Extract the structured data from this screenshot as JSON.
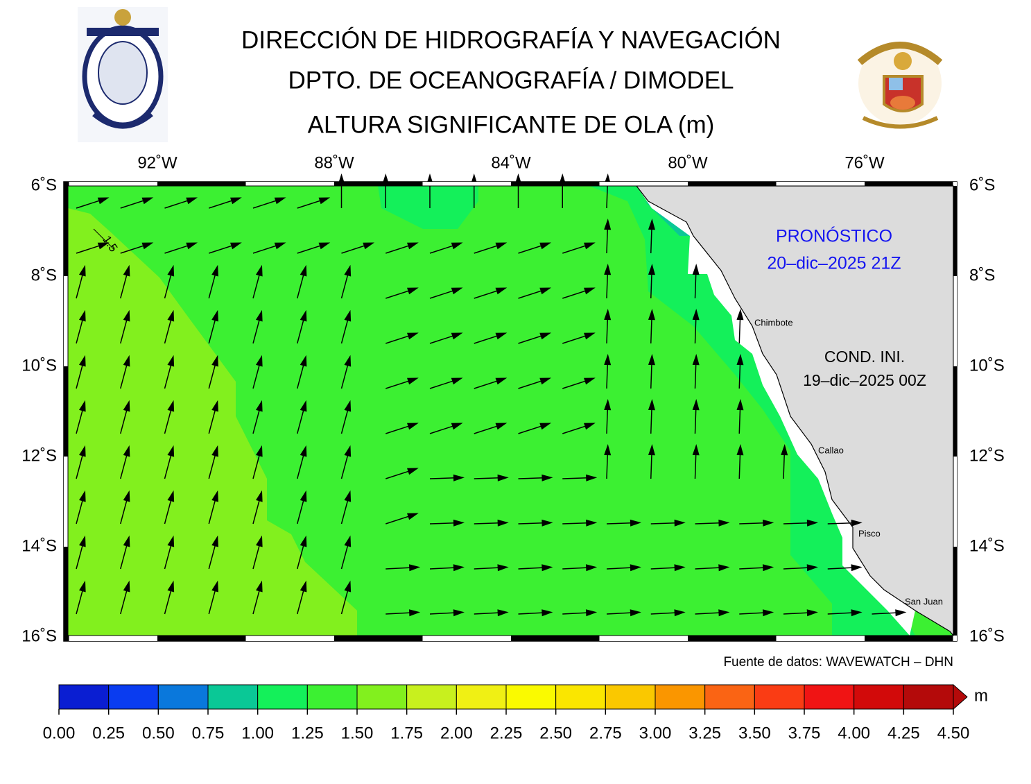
{
  "header": {
    "lines": [
      "DIRECCIÓN DE HIDROGRAFÍA Y NAVEGACIÓN",
      "DPTO. DE OCEANOGRAFÍA / DIMODEL",
      "ALTURA SIGNIFICANTE DE OLA (m)"
    ]
  },
  "map": {
    "lon_labels": [
      "92˚W",
      "88˚W",
      "84˚W",
      "80˚W",
      "76˚W"
    ],
    "lat_labels": [
      "6˚S",
      "8˚S",
      "10˚S",
      "12˚S",
      "14˚S",
      "16˚S"
    ],
    "forecast": [
      "PRONÓSTICO",
      "20–dic–2025 21Z"
    ],
    "initial": [
      "COND. INI.",
      "19–dic–2025 00Z"
    ],
    "cities": [
      "Chimbote",
      "Callao",
      "Pisco",
      "San Juan"
    ],
    "contour_label": "1.5",
    "source": "Fuente de datos: WAVEWATCH – DHN"
  },
  "colorbar": {
    "unit": "m",
    "colors": [
      "#0a1ed2",
      "#0a3cf0",
      "#0a78dc",
      "#0ac896",
      "#14f05a",
      "#3cf032",
      "#82f01e",
      "#c8f01e",
      "#f0f014",
      "#fafa00",
      "#fae600",
      "#fac800",
      "#fa9600",
      "#fa6414",
      "#fa3c14",
      "#f01414",
      "#d20a0a",
      "#b40a0a"
    ],
    "ticks": [
      {
        "value": 0,
        "label": "0.00"
      },
      {
        "value": 0.25,
        "label": "0.25"
      },
      {
        "value": 0.5,
        "label": "0.50"
      },
      {
        "value": 0.75,
        "label": "0.75"
      },
      {
        "value": 1,
        "label": "1.00"
      },
      {
        "value": 1.25,
        "label": "1.25"
      },
      {
        "value": 1.5,
        "label": "1.50"
      },
      {
        "value": 1.75,
        "label": "1.75"
      },
      {
        "value": 2,
        "label": "2.00"
      },
      {
        "value": 2.25,
        "label": "2.25"
      },
      {
        "value": 2.5,
        "label": "2.50"
      },
      {
        "value": 2.75,
        "label": "2.75"
      },
      {
        "value": 3,
        "label": "3.00"
      },
      {
        "value": 3.25,
        "label": "3.25"
      },
      {
        "value": 3.5,
        "label": "3.50"
      },
      {
        "value": 3.75,
        "label": "3.75"
      },
      {
        "value": 4,
        "label": "4.00"
      },
      {
        "value": 4.25,
        "label": "4.25"
      },
      {
        "value": 4.5,
        "label": "4.50"
      }
    ]
  }
}
